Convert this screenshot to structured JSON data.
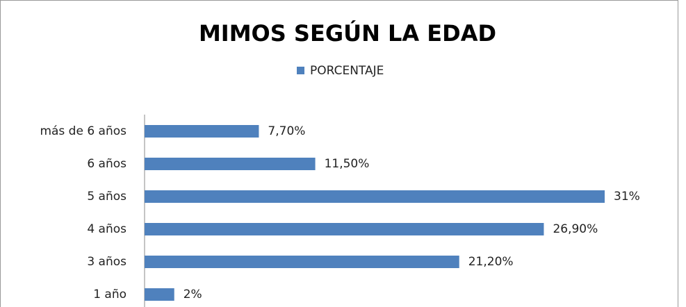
{
  "chart_data": {
    "type": "bar",
    "orientation": "horizontal",
    "title": "MIMOS SEGÚN LA EDAD",
    "categories": [
      "más de 6 años",
      "6 años",
      "5 años",
      "4 años",
      "3 años",
      "1 año"
    ],
    "series": [
      {
        "name": "PORCENTAJE",
        "color": "#4f81bd",
        "values": [
          7.7,
          11.5,
          31,
          26.9,
          21.2,
          2
        ],
        "value_labels": [
          "7,70%",
          "11,50%",
          "31%",
          "26,90%",
          "21,20%",
          "2%"
        ]
      }
    ],
    "legend": "top"
  }
}
